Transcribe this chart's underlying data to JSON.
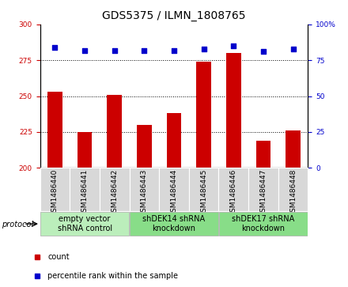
{
  "title": "GDS5375 / ILMN_1808765",
  "samples": [
    "GSM1486440",
    "GSM1486441",
    "GSM1486442",
    "GSM1486443",
    "GSM1486444",
    "GSM1486445",
    "GSM1486446",
    "GSM1486447",
    "GSM1486448"
  ],
  "counts": [
    253,
    225,
    251,
    230,
    238,
    274,
    280,
    219,
    226
  ],
  "percentile_ranks": [
    84,
    82,
    82,
    82,
    82,
    83,
    85,
    81,
    83
  ],
  "ylim_left": [
    200,
    300
  ],
  "ylim_right": [
    0,
    100
  ],
  "yticks_left": [
    200,
    225,
    250,
    275,
    300
  ],
  "yticks_right": [
    0,
    25,
    50,
    75,
    100
  ],
  "bar_color": "#cc0000",
  "dot_color": "#0000cc",
  "grid_color": "#000000",
  "protocol_groups": [
    {
      "label": "empty vector\nshRNA control",
      "start": 0,
      "end": 3,
      "color": "#bbeebb"
    },
    {
      "label": "shDEK14 shRNA\nknockdown",
      "start": 3,
      "end": 6,
      "color": "#88dd88"
    },
    {
      "label": "shDEK17 shRNA\nknockdown",
      "start": 6,
      "end": 9,
      "color": "#88dd88"
    }
  ],
  "protocol_label": "protocol",
  "legend_count_label": "count",
  "legend_pct_label": "percentile rank within the sample",
  "bar_width": 0.5,
  "title_fontsize": 10,
  "tick_fontsize": 6.5,
  "label_fontsize": 7,
  "sample_label_fontsize": 6.5
}
